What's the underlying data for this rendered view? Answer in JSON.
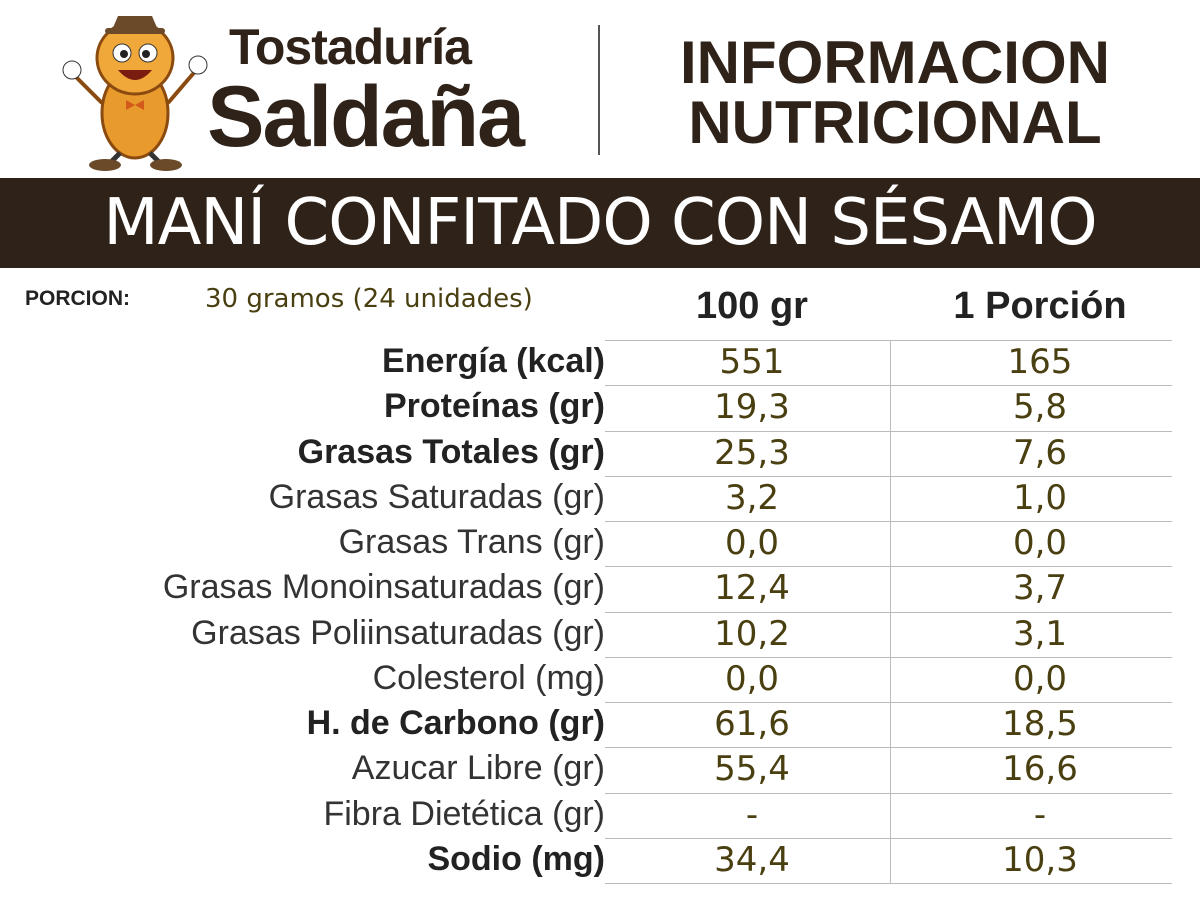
{
  "header": {
    "brand_line1": "Tostaduría",
    "brand_line2": "Saldaña",
    "title_line1": "INFORMACION",
    "title_line2": "NUTRICIONAL"
  },
  "product": "MANÍ CONFITADO CON SÉSAMO",
  "portion": {
    "label": "PORCION:",
    "value": "30 gramos (24 unidades)"
  },
  "table": {
    "columns": [
      "100 gr",
      "1 Porción"
    ],
    "rows": [
      {
        "label": "Energía (kcal)",
        "bold": true,
        "values": [
          "551",
          "165"
        ]
      },
      {
        "label": "Proteínas (gr)",
        "bold": true,
        "values": [
          "19,3",
          "5,8"
        ]
      },
      {
        "label": "Grasas Totales (gr)",
        "bold": true,
        "values": [
          "25,3",
          "7,6"
        ]
      },
      {
        "label": "Grasas Saturadas (gr)",
        "bold": false,
        "values": [
          "3,2",
          "1,0"
        ]
      },
      {
        "label": "Grasas Trans (gr)",
        "bold": false,
        "values": [
          "0,0",
          "0,0"
        ]
      },
      {
        "label": "Grasas Monoinsaturadas (gr)",
        "bold": false,
        "values": [
          "12,4",
          "3,7"
        ]
      },
      {
        "label": "Grasas Poliinsaturadas (gr)",
        "bold": false,
        "values": [
          "10,2",
          "3,1"
        ]
      },
      {
        "label": "Colesterol (mg)",
        "bold": false,
        "values": [
          "0,0",
          "0,0"
        ]
      },
      {
        "label": "H. de Carbono (gr)",
        "bold": true,
        "values": [
          "61,6",
          "18,5"
        ]
      },
      {
        "label": "Azucar Libre (gr)",
        "bold": false,
        "values": [
          "55,4",
          "16,6"
        ]
      },
      {
        "label": "Fibra Dietética (gr)",
        "bold": false,
        "values": [
          "-",
          "-"
        ]
      },
      {
        "label": "Sodio (mg)",
        "bold": true,
        "values": [
          "34,4",
          "10,3"
        ]
      }
    ]
  }
}
